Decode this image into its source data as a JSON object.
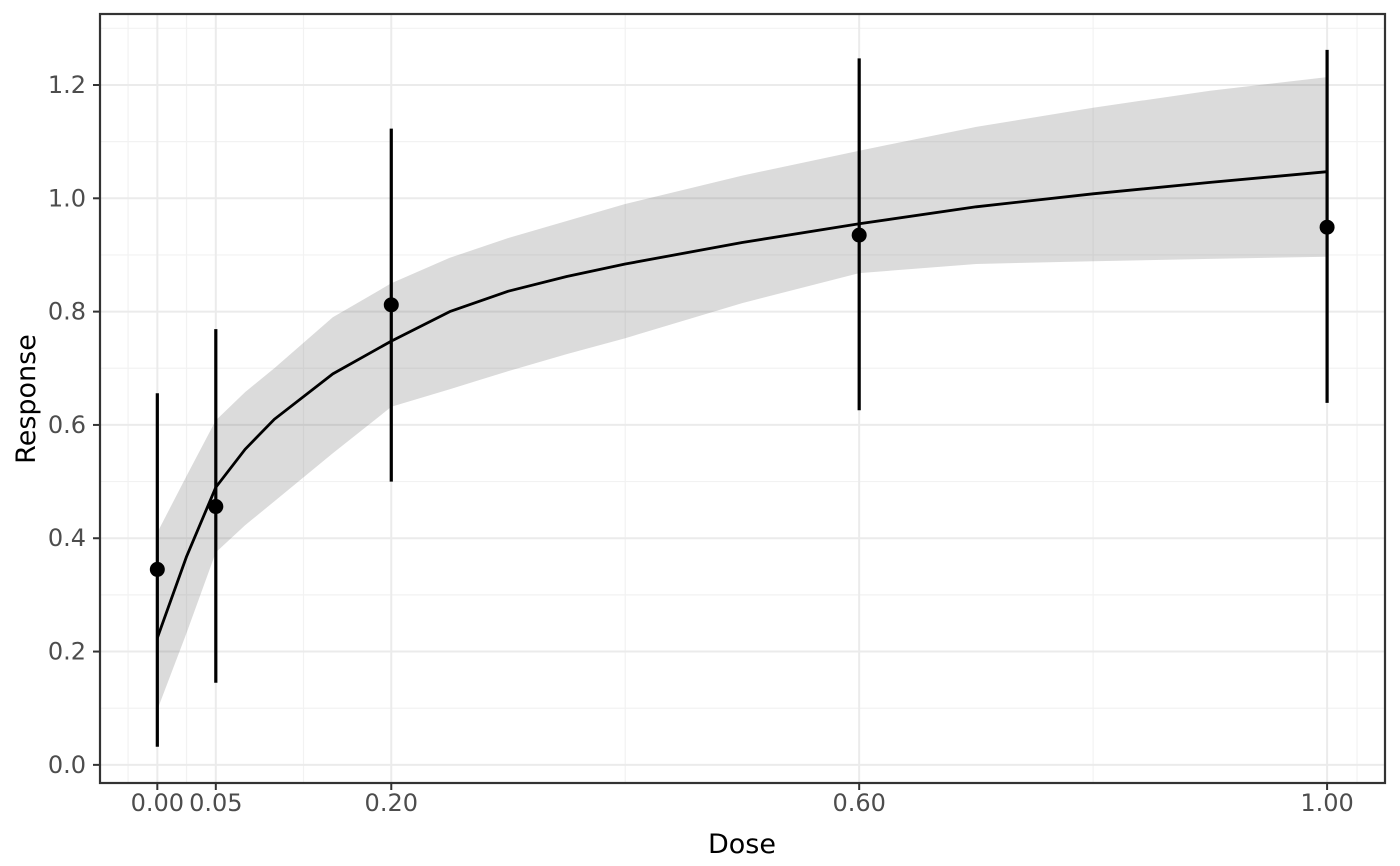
{
  "figure": {
    "kind": "ggplot-style dose-response fit plot",
    "background": "#ffffff"
  },
  "chart_data": {
    "type": "line",
    "subtype": "fitted-curve-with-confidence-ribbon-and-errorbars",
    "title": "",
    "xlabel": "Dose",
    "ylabel": "Response",
    "xlim": [
      -0.049,
      1.0495
    ],
    "ylim": [
      -0.032,
      1.3253
    ],
    "grid": "on",
    "legend": "none",
    "x_ticks": {
      "values": [
        0.0,
        0.05,
        0.2,
        0.6,
        1.0
      ],
      "labels": [
        "0.00",
        "0.05",
        "0.20",
        "0.60",
        "1.00"
      ]
    },
    "x_minor": [
      -0.025,
      0.025,
      0.125,
      0.4,
      0.8,
      1.0256
    ],
    "y_ticks": {
      "values": [
        0.0,
        0.2,
        0.4,
        0.6,
        0.8,
        1.0,
        1.2
      ],
      "labels": [
        "0.0",
        "0.2",
        "0.4",
        "0.6",
        "0.8",
        "1.0",
        "1.2"
      ]
    },
    "y_minor": [
      0.1,
      0.3,
      0.5,
      0.7,
      0.9,
      1.1,
      1.3
    ],
    "observed_points": {
      "dose": [
        0.0,
        0.05,
        0.2,
        0.6,
        1.0
      ],
      "response": [
        0.345,
        0.456,
        0.812,
        0.935,
        0.949
      ],
      "ci_lower": [
        0.032,
        0.145,
        0.5,
        0.626,
        0.639
      ],
      "ci_upper": [
        0.656,
        0.769,
        1.123,
        1.247,
        1.262
      ]
    },
    "fit_curve": {
      "dose": [
        0.0,
        0.025,
        0.05,
        0.075,
        0.1,
        0.15,
        0.2,
        0.25,
        0.3,
        0.35,
        0.4,
        0.5,
        0.6,
        0.7,
        0.8,
        0.9,
        1.0
      ],
      "response": [
        0.224,
        0.368,
        0.49,
        0.557,
        0.61,
        0.69,
        0.748,
        0.8,
        0.836,
        0.862,
        0.884,
        0.922,
        0.955,
        0.985,
        1.008,
        1.028,
        1.047
      ]
    },
    "confidence_band": {
      "dose": [
        0.0,
        0.025,
        0.05,
        0.075,
        0.1,
        0.15,
        0.2,
        0.25,
        0.3,
        0.35,
        0.4,
        0.5,
        0.6,
        0.7,
        0.8,
        0.9,
        1.0
      ],
      "upper": [
        0.41,
        0.51,
        0.608,
        0.658,
        0.7,
        0.79,
        0.85,
        0.895,
        0.93,
        0.96,
        0.99,
        1.04,
        1.084,
        1.126,
        1.16,
        1.19,
        1.214
      ],
      "lower": [
        0.097,
        0.233,
        0.375,
        0.423,
        0.465,
        0.55,
        0.632,
        0.663,
        0.695,
        0.725,
        0.753,
        0.815,
        0.868,
        0.884,
        0.889,
        0.893,
        0.897
      ]
    },
    "colors": {
      "curve": "#000000",
      "point": "#000000",
      "errorbar": "#000000",
      "band_fill": "rgba(100,100,100,0.23)",
      "grid_major": "#ebebeb",
      "grid_minor": "#f2f2f2",
      "panel_border": "#333333",
      "tick_mark": "#333333",
      "tick_label": "#4d4d4d",
      "axis_title": "#000000",
      "panel_bg": "#ffffff"
    }
  }
}
